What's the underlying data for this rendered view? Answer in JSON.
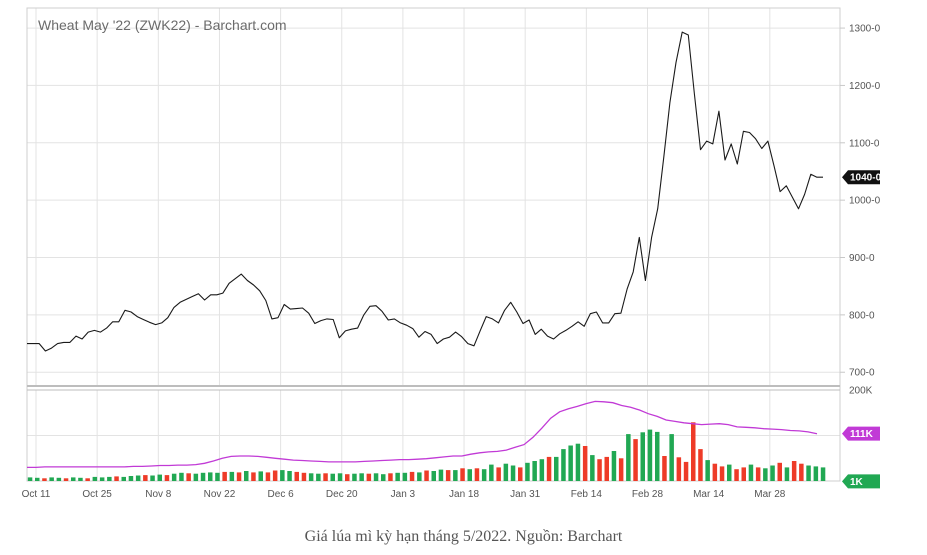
{
  "caption": "Giá lúa mì kỳ hạn tháng 5/2022. Nguồn: Barchart",
  "colors": {
    "price_line": "#1a1a1a",
    "volume_up": "#21a853",
    "volume_down": "#ee3b28",
    "avg_line": "#c13ad6",
    "grid": "#e3e3e3",
    "axis": "#c8c8c8",
    "last_price_badge": "#111111",
    "volume_badge": "#21a853"
  },
  "chart_data": [
    {
      "type": "line",
      "title": "Wheat May '22 (ZWK22) - Barchart.com",
      "x_ticks": [
        "Oct 11",
        "Oct 25",
        "Nov 8",
        "Nov 22",
        "Dec 6",
        "Dec 20",
        "Jan 3",
        "Jan 18",
        "Jan 31",
        "Feb 14",
        "Feb 28",
        "Mar 14",
        "Mar 28"
      ],
      "y_ticks": [
        "700-0",
        "800-0",
        "900-0",
        "1000-0",
        "1100-0",
        "1200-0",
        "1300-0"
      ],
      "ylim": [
        676,
        1335
      ],
      "last_price_label": "1040-0",
      "series": [
        {
          "values": [
            750,
            750,
            750,
            737,
            742,
            750,
            752,
            752,
            763,
            758,
            770,
            773,
            770,
            777,
            788,
            788,
            808,
            805,
            797,
            792,
            787,
            783,
            786,
            795,
            813,
            822,
            827,
            832,
            837,
            826,
            835,
            835,
            838,
            855,
            863,
            871,
            860,
            852,
            842,
            825,
            793,
            795,
            818,
            810,
            811,
            812,
            803,
            785,
            790,
            793,
            792,
            760,
            772,
            775,
            777,
            800,
            815,
            816,
            806,
            791,
            793,
            786,
            782,
            776,
            761,
            771,
            766,
            750,
            758,
            761,
            770,
            762,
            750,
            746,
            772,
            797,
            793,
            786,
            808,
            822,
            805,
            785,
            791,
            766,
            775,
            763,
            758,
            767,
            773,
            780,
            788,
            780,
            802,
            805,
            786,
            786,
            802,
            803,
            845,
            875,
            935,
            860,
            935,
            985,
            1075,
            1170,
            1240,
            1293,
            1288,
            1185,
            1088,
            1103,
            1098,
            1155,
            1070,
            1098,
            1063,
            1120,
            1118,
            1107,
            1090,
            1103,
            1060,
            1015,
            1025,
            1005,
            985,
            1010,
            1045,
            1040,
            1040
          ]
        }
      ]
    },
    {
      "type": "bar",
      "y_ticks": [
        "200K"
      ],
      "ylim": [
        0,
        200
      ],
      "volume_badge": "1K",
      "avg_badge": "111K",
      "series": [
        {
          "name": "volume",
          "values": [
            8,
            7,
            6,
            8,
            7,
            6,
            8,
            7,
            6,
            9,
            8,
            9,
            10,
            9,
            11,
            12,
            13,
            12,
            14,
            13,
            16,
            18,
            17,
            16,
            18,
            19,
            18,
            20,
            20,
            19,
            22,
            19,
            21,
            19,
            23,
            24,
            22,
            20,
            18,
            17,
            16,
            17,
            16,
            17,
            15,
            16,
            17,
            16,
            17,
            15,
            17,
            18,
            18,
            20,
            19,
            23,
            22,
            25,
            24,
            24,
            28,
            26,
            28,
            26,
            36,
            30,
            38,
            34,
            30,
            40,
            44,
            48,
            53,
            53,
            70,
            78,
            82,
            77,
            57,
            48,
            53,
            66,
            50,
            103,
            92,
            107,
            113,
            108,
            55,
            103,
            52,
            42,
            129,
            70,
            46,
            38,
            32,
            36,
            26,
            30,
            36,
            30,
            28,
            34,
            40,
            30,
            44,
            38,
            34,
            32,
            30
          ],
          "down": [
            0,
            0,
            1,
            0,
            0,
            1,
            0,
            0,
            1,
            0,
            0,
            0,
            1,
            0,
            0,
            0,
            1,
            0,
            0,
            1,
            0,
            0,
            1,
            0,
            0,
            0,
            0,
            1,
            0,
            1,
            0,
            1,
            0,
            1,
            1,
            0,
            0,
            1,
            1,
            0,
            0,
            1,
            0,
            0,
            1,
            0,
            0,
            1,
            0,
            0,
            1,
            0,
            0,
            1,
            0,
            1,
            0,
            0,
            1,
            0,
            1,
            0,
            1,
            0,
            0,
            1,
            0,
            0,
            1,
            0,
            0,
            0,
            1,
            0,
            0,
            0,
            0,
            1,
            0,
            1,
            1,
            0,
            1,
            0,
            1,
            0,
            0,
            0,
            1,
            0,
            1,
            1,
            1,
            1,
            0,
            1,
            1,
            0,
            1,
            1,
            0,
            1,
            0,
            0,
            1,
            0,
            1,
            1,
            0,
            0,
            0
          ]
        },
        {
          "name": "average",
          "values": [
            30,
            30,
            31,
            31,
            31,
            31,
            31,
            31,
            31,
            31,
            31,
            31,
            32,
            32,
            33,
            34,
            34,
            35,
            35,
            36,
            39,
            44,
            50,
            54,
            55,
            55,
            54,
            52,
            50,
            48,
            46,
            45,
            44,
            43,
            42,
            42,
            42,
            42,
            43,
            44,
            45,
            46,
            47,
            47,
            48,
            49,
            51,
            53,
            55,
            55,
            59,
            62,
            64,
            65,
            68,
            74,
            80,
            96,
            116,
            138,
            152,
            159,
            164,
            170,
            175,
            174,
            172,
            166,
            162,
            156,
            148,
            142,
            134,
            131,
            128,
            126,
            124,
            125,
            126,
            124,
            119,
            118,
            117,
            115,
            114,
            113,
            111,
            110,
            108,
            104
          ]
        }
      ]
    }
  ]
}
